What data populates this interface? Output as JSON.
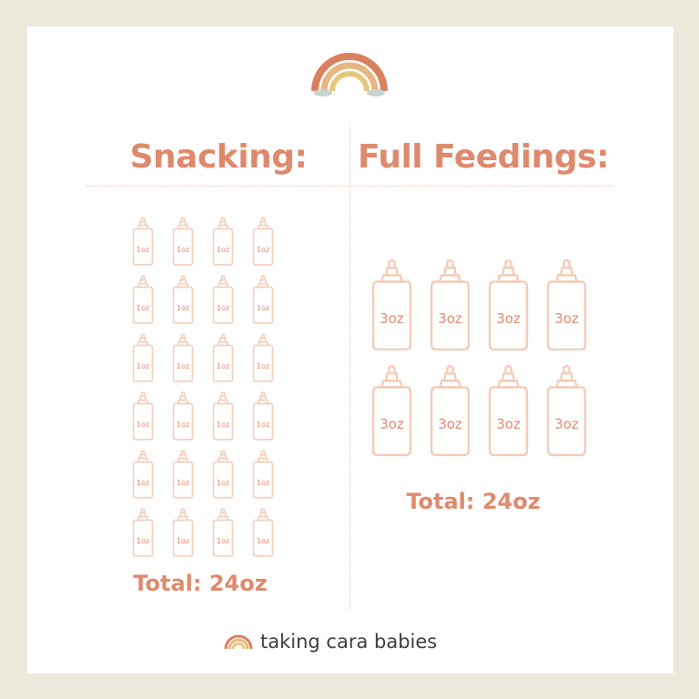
{
  "colors": {
    "background": "#ece8dc",
    "card": "#ffffff",
    "accent": "#de8a6d",
    "bottle_outline": "#f3cdb9",
    "rainbow_outer": "#d9805f",
    "rainbow_middle": "#e7b783",
    "rainbow_inner": "#e6c87c",
    "cloud": "#c9d4cf"
  },
  "logo_icon": "rainbow-icon",
  "snacking": {
    "heading": "Snacking:",
    "bottle_icon": "baby-bottle-icon",
    "bottle_label": "1oz",
    "bottle_count": 24,
    "total": "Total: 24oz"
  },
  "full_feedings": {
    "heading": "Full Feedings:",
    "bottle_icon": "baby-bottle-icon",
    "bottle_label": "3oz",
    "bottle_count": 8,
    "total": "Total: 24oz"
  },
  "brand": {
    "icon": "rainbow-icon",
    "name": "taking cara babies"
  }
}
